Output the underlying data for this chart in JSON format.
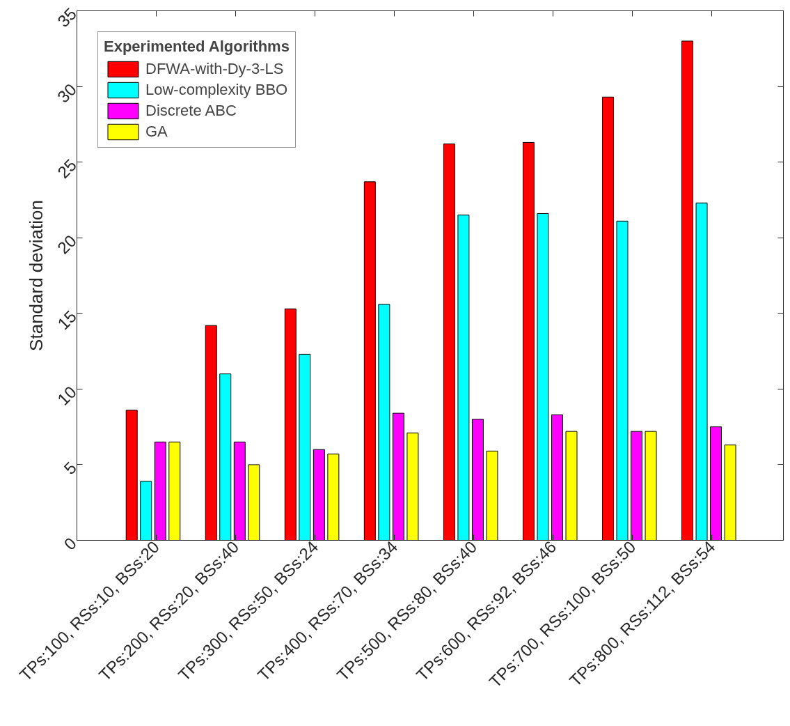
{
  "chart_data": {
    "type": "bar",
    "ylabel": "Standard deviation",
    "legend_title": "Experimented Algorithms",
    "categories": [
      "TPs:100, RSs:10, BSs:20",
      "TPs:200, RSs:20, BSs:40",
      "TPs:300, RSs:50, BSs:24",
      "TPs:400, RSs:70, BSs:34",
      "TPs:500, RSs:80, BSs:40",
      "TPs:600, RSs:92, BSs:46",
      "TPs:700, RSs:100, BSs:50",
      "TPs:800, RSs:112, BSs:54"
    ],
    "series": [
      {
        "name": "DFWA-with-Dy-3-LS",
        "color": "#ff0000",
        "values": [
          8.6,
          14.2,
          15.3,
          23.7,
          26.2,
          26.3,
          29.3,
          33.0
        ]
      },
      {
        "name": "Low-complexity BBO",
        "color": "#00ffff",
        "values": [
          3.9,
          11.0,
          12.3,
          15.6,
          21.5,
          21.6,
          21.1,
          22.3
        ]
      },
      {
        "name": "Discrete ABC",
        "color": "#ff00ff",
        "values": [
          6.5,
          6.5,
          6.0,
          8.4,
          8.0,
          8.3,
          7.2,
          7.5
        ]
      },
      {
        "name": "GA",
        "color": "#ffff00",
        "values": [
          6.5,
          5.0,
          5.7,
          7.1,
          5.9,
          7.2,
          7.2,
          6.3
        ]
      }
    ],
    "ylim": [
      0,
      35
    ],
    "yticks": [
      0,
      5,
      10,
      15,
      20,
      25,
      30,
      35
    ],
    "grid": false,
    "legend": "top left"
  }
}
